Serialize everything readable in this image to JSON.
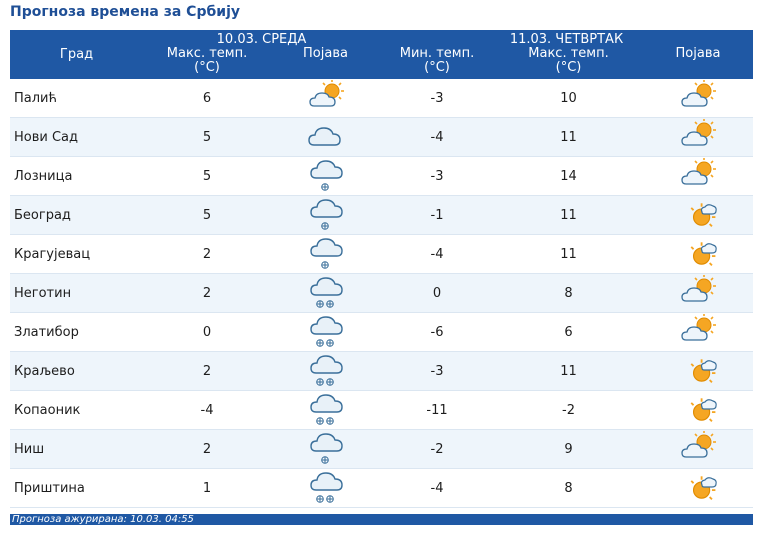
{
  "page": {
    "title": "Прогноза времена за Србију"
  },
  "table": {
    "city_header": "Град",
    "day1": {
      "label": "10.03. СРЕДА",
      "max_header": "Макс. темп.",
      "unit": "(°C)",
      "phenomenon_header": "Појава"
    },
    "day2": {
      "label": "11.03. ЧЕТВРТАК",
      "min_header": "Мин. темп.",
      "max_header": "Макс. темп.",
      "unit": "(°C)",
      "phenomenon_header": "Појава"
    },
    "rows": [
      {
        "city": "Палић",
        "d1_max": "6",
        "d1_icon": "partly-cloudy-icon",
        "d2_min": "-3",
        "d2_max": "10",
        "d2_icon": "partly-cloudy-icon"
      },
      {
        "city": "Нови Сад",
        "d1_max": "5",
        "d1_icon": "cloudy-icon",
        "d2_min": "-4",
        "d2_max": "11",
        "d2_icon": "partly-cloudy-icon"
      },
      {
        "city": "Лозница",
        "d1_max": "5",
        "d1_icon": "snow-light-icon",
        "d2_min": "-3",
        "d2_max": "14",
        "d2_icon": "partly-cloudy-icon"
      },
      {
        "city": "Београд",
        "d1_max": "5",
        "d1_icon": "snow-light-icon",
        "d2_min": "-1",
        "d2_max": "11",
        "d2_icon": "mostly-sunny-icon"
      },
      {
        "city": "Крагујевац",
        "d1_max": "2",
        "d1_icon": "snow-light-icon",
        "d2_min": "-4",
        "d2_max": "11",
        "d2_icon": "mostly-sunny-icon"
      },
      {
        "city": "Неготин",
        "d1_max": "2",
        "d1_icon": "snow-heavy-icon",
        "d2_min": "0",
        "d2_max": "8",
        "d2_icon": "partly-cloudy-icon"
      },
      {
        "city": "Златибор",
        "d1_max": "0",
        "d1_icon": "snow-heavy-icon",
        "d2_min": "-6",
        "d2_max": "6",
        "d2_icon": "partly-cloudy-icon"
      },
      {
        "city": "Краљево",
        "d1_max": "2",
        "d1_icon": "snow-heavy-icon",
        "d2_min": "-3",
        "d2_max": "11",
        "d2_icon": "mostly-sunny-icon"
      },
      {
        "city": "Копаоник",
        "d1_max": "-4",
        "d1_icon": "snow-heavy-icon",
        "d2_min": "-11",
        "d2_max": "-2",
        "d2_icon": "mostly-sunny-icon"
      },
      {
        "city": "Ниш",
        "d1_max": "2",
        "d1_icon": "snow-light-icon",
        "d2_min": "-2",
        "d2_max": "9",
        "d2_icon": "partly-cloudy-icon"
      },
      {
        "city": "Приштина",
        "d1_max": "1",
        "d1_icon": "snow-heavy-icon",
        "d2_min": "-4",
        "d2_max": "8",
        "d2_icon": "mostly-sunny-icon"
      }
    ]
  },
  "footer": {
    "updated_text": "Прогноза ажурирана:  10.03. 04:55"
  }
}
